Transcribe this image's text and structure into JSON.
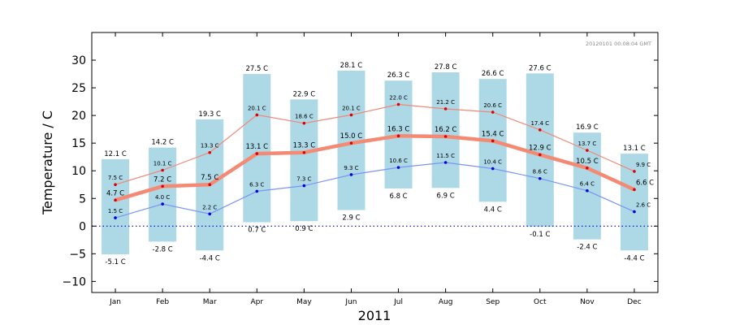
{
  "chart_data": {
    "type": "bar",
    "title": "",
    "xlabel": "2011",
    "ylabel": "Temperature / C",
    "ylim": [
      -12,
      35
    ],
    "yticks": [
      -10,
      -5,
      0,
      5,
      10,
      15,
      20,
      25,
      30
    ],
    "ytick_labels": [
      "−10",
      "−5",
      "0",
      "5",
      "10",
      "15",
      "20",
      "25",
      "30"
    ],
    "timestamp": "20120101 00:08:04 GMT",
    "unit_suffix": " C",
    "categories": [
      "Jan",
      "Feb",
      "Mar",
      "Apr",
      "May",
      "Jun",
      "Jul",
      "Aug",
      "Sep",
      "Oct",
      "Nov",
      "Dec"
    ],
    "bars": {
      "name": "range",
      "min": [
        -5.1,
        -2.8,
        -4.4,
        0.7,
        0.9,
        2.9,
        6.8,
        6.9,
        4.4,
        -0.1,
        -2.4,
        -4.4
      ],
      "max": [
        12.1,
        14.2,
        19.3,
        27.5,
        22.9,
        28.1,
        26.3,
        27.8,
        26.6,
        27.6,
        16.9,
        13.1
      ],
      "min_labels": [
        "-5.1 C",
        "-2.8 C",
        "-4.4 C",
        "0.7 C",
        "0.9 C",
        "2.9 C",
        "6.8 C",
        "6.9 C",
        "4.4 C",
        "-0.1 C",
        "-2.4 C",
        "-4.4 C"
      ],
      "max_labels": [
        "12.1 C",
        "14.2 C",
        "19.3 C",
        "27.5 C",
        "22.9 C",
        "28.1 C",
        "26.3 C",
        "27.8 C",
        "26.6 C",
        "27.6 C",
        "16.9 C",
        "13.1 C"
      ],
      "color": "#add8e6"
    },
    "series": [
      {
        "values": [
          7.5,
          10.1,
          13.3,
          20.1,
          18.6,
          20.1,
          22.0,
          21.2,
          20.6,
          17.4,
          13.7,
          9.9
        ],
        "labels": [
          "7.5 C",
          "10.1 C",
          "13.3 C",
          "20.1 C",
          "18.6 C",
          "20.1 C",
          "22.0 C",
          "21.2 C",
          "20.6 C",
          "17.4 C",
          "13.7 C",
          "9.9 C"
        ],
        "color": "#f08878",
        "width": 1.2,
        "label_size": 7
      },
      {
        "values": [
          4.7,
          7.2,
          7.5,
          13.1,
          13.3,
          15.0,
          16.3,
          16.2,
          15.4,
          12.9,
          10.5,
          6.6
        ],
        "labels": [
          "4.7 C",
          "7.2 C",
          "7.5 C",
          "13.1 C",
          "13.3 C",
          "15.0 C",
          "16.3 C",
          "16.2 C",
          "15.4 C",
          "12.9 C",
          "10.5 C",
          "6.6 C"
        ],
        "color": "#f48a74",
        "width": 4.5,
        "label_size": 8.5
      },
      {
        "values": [
          1.5,
          4.0,
          2.2,
          6.3,
          7.3,
          9.3,
          10.6,
          11.5,
          10.4,
          8.6,
          6.4,
          2.6
        ],
        "labels": [
          "1.5 C",
          "4.0 C",
          "2.2 C",
          "6.3 C",
          "7.3 C",
          "9.3 C",
          "10.6 C",
          "11.5 C",
          "10.4 C",
          "8.6 C",
          "6.4 C",
          "2.6 C"
        ],
        "color": "#7a95f2",
        "width": 1.2,
        "label_size": 7
      }
    ],
    "zero_line": {
      "value": 0,
      "style": "dotted",
      "color": "#0000cc"
    },
    "grid": false,
    "legend": "none"
  }
}
